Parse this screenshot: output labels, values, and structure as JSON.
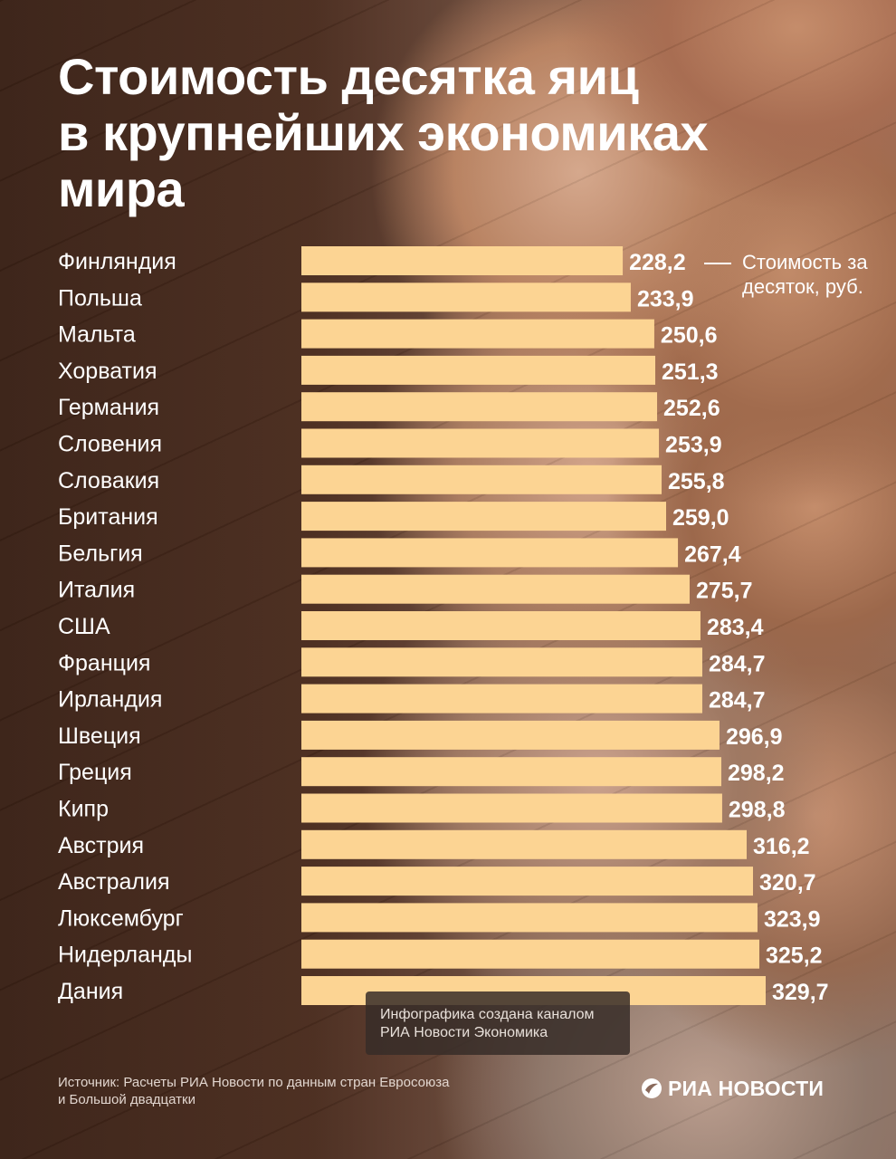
{
  "title": {
    "line1": "Стоимость десятка яиц",
    "line2": "в крупнейших экономиках",
    "line3": "мира"
  },
  "legend_note": "Стоимость за десяток, руб.",
  "credit": {
    "line1": "Инфографика создана каналом",
    "line2": "РИА Новости Экономика"
  },
  "source": {
    "line1": "Источник: Расчеты РИА Новости по данным стран Евросоюза",
    "line2": "и Большой двадцатки"
  },
  "logo_text": "РИА НОВОСТИ",
  "colors": {
    "bar": "#fcd493",
    "text": "#ffffff"
  },
  "chart_data": {
    "type": "bar",
    "orientation": "horizontal",
    "categories": [
      "Финляндия",
      "Польша",
      "Мальта",
      "Хорватия",
      "Германия",
      "Словения",
      "Словакия",
      "Британия",
      "Бельгия",
      "Италия",
      "США",
      "Франция",
      "Ирландия",
      "Швеция",
      "Греция",
      "Кипр",
      "Австрия",
      "Австралия",
      "Люксембург",
      "Нидерланды",
      "Дания"
    ],
    "values": [
      228.2,
      233.9,
      250.6,
      251.3,
      252.6,
      253.9,
      255.8,
      259.0,
      267.4,
      275.7,
      283.4,
      284.7,
      284.7,
      296.9,
      298.2,
      298.8,
      316.2,
      320.7,
      323.9,
      325.2,
      329.7
    ],
    "value_labels": [
      "228,2",
      "233,9",
      "250,6",
      "251,3",
      "252,6",
      "253,9",
      "255,8",
      "259,0",
      "267,4",
      "275,7",
      "283,4",
      "284,7",
      "284,7",
      "296,9",
      "298,2",
      "298,8",
      "316,2",
      "320,7",
      "323,9",
      "325,2",
      "329,7"
    ],
    "title": "Стоимость десятка яиц в крупнейших экономиках мира",
    "unit_note": "Стоимость за десяток, руб.",
    "xlim": [
      0,
      329.7
    ],
    "grid": false,
    "legend": "none"
  }
}
